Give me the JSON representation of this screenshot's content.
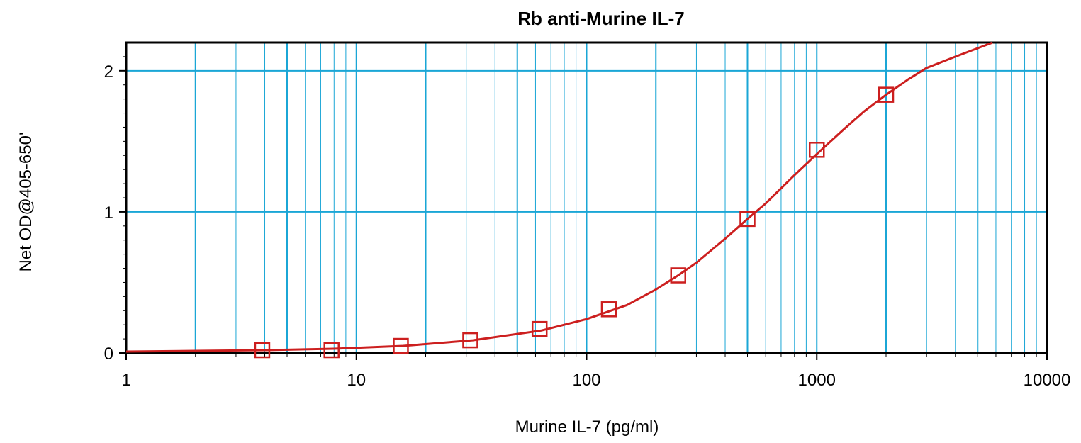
{
  "chart_data": {
    "type": "scatter",
    "title": "Rb anti-Murine IL-7",
    "xlabel": "Murine IL-7 (pg/ml)",
    "ylabel": "Net OD@405-650'",
    "x_scale": "log",
    "xlim": [
      1,
      10000
    ],
    "ylim": [
      0,
      2.2
    ],
    "x_ticks": [
      "1",
      "10",
      "100",
      "1000",
      "10000"
    ],
    "y_ticks": [
      "0",
      "1",
      "2"
    ],
    "grid": true,
    "legend": "none",
    "series": [
      {
        "marker": "open-square",
        "color": "#cc1f1f",
        "x": [
          3.9,
          7.8,
          15.6,
          31.25,
          62.5,
          125,
          250,
          500,
          1000,
          2000
        ],
        "y": [
          0.02,
          0.02,
          0.05,
          0.09,
          0.17,
          0.31,
          0.55,
          0.95,
          1.44,
          1.83
        ]
      }
    ],
    "fit_curve": {
      "type": "4PL",
      "color": "#cc1f1f",
      "x": [
        1,
        2,
        4,
        8,
        16,
        32,
        64,
        100,
        150,
        200,
        250,
        300,
        400,
        500,
        600,
        800,
        1000,
        1300,
        1600,
        2000,
        2500,
        3000,
        4000,
        5000,
        5800
      ],
      "y": [
        0.01,
        0.015,
        0.02,
        0.03,
        0.05,
        0.09,
        0.16,
        0.24,
        0.34,
        0.45,
        0.55,
        0.64,
        0.81,
        0.95,
        1.06,
        1.26,
        1.41,
        1.58,
        1.71,
        1.83,
        1.94,
        2.02,
        2.1,
        2.16,
        2.2
      ]
    },
    "colors": {
      "grid": "#1aa6d6",
      "frame": "#000000",
      "series": "#cc1f1f"
    }
  }
}
